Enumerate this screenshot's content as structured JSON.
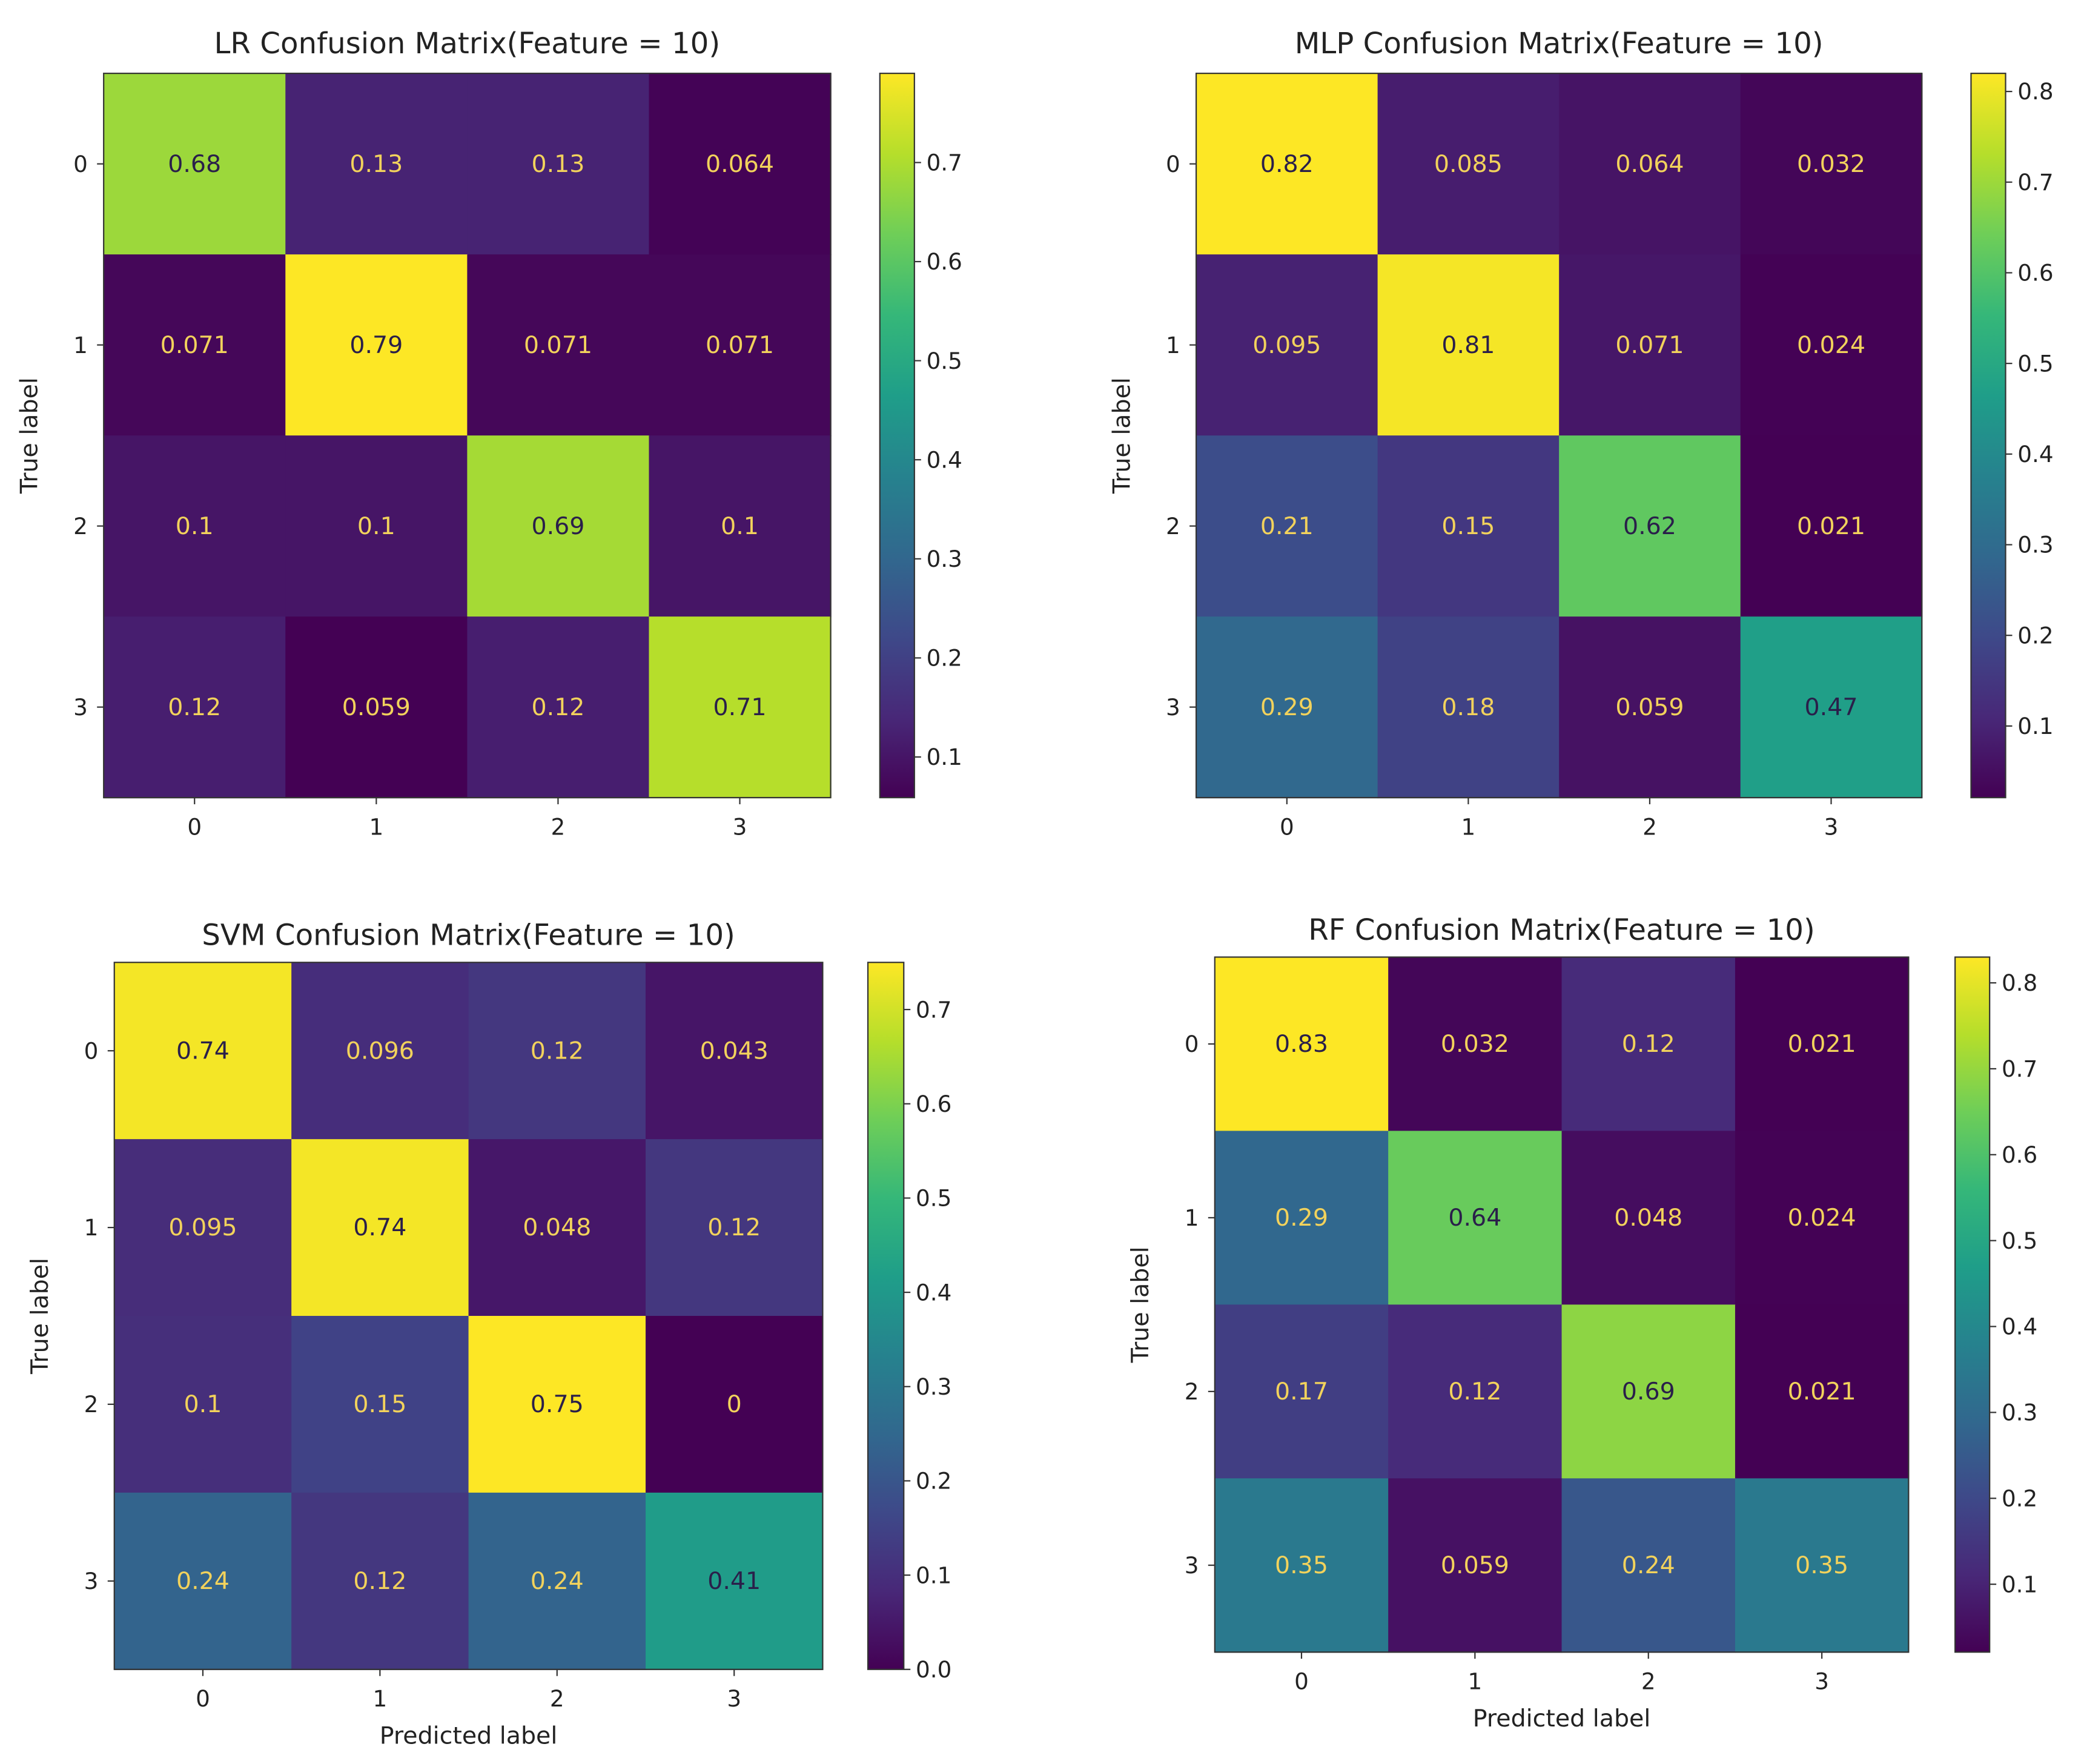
{
  "chart_data": [
    {
      "type": "heatmap",
      "title": "LR Confusion Matrix(Feature = 10)",
      "xlabel": "",
      "ylabel": "True label",
      "x_ticks": [
        "0",
        "1",
        "2",
        "3"
      ],
      "y_ticks": [
        "0",
        "1",
        "2",
        "3"
      ],
      "values": [
        [
          0.68,
          0.13,
          0.13,
          0.064
        ],
        [
          0.071,
          0.79,
          0.071,
          0.071
        ],
        [
          0.1,
          0.1,
          0.69,
          0.1
        ],
        [
          0.12,
          0.059,
          0.12,
          0.71
        ]
      ],
      "colorbar": {
        "vmin": 0.059,
        "vmax": 0.79,
        "ticks": [
          "0.1",
          "0.2",
          "0.3",
          "0.4",
          "0.5",
          "0.6",
          "0.7"
        ]
      },
      "colormap": "viridis"
    },
    {
      "type": "heatmap",
      "title": "MLP Confusion Matrix(Feature = 10)",
      "xlabel": "",
      "ylabel": "True label",
      "x_ticks": [
        "0",
        "1",
        "2",
        "3"
      ],
      "y_ticks": [
        "0",
        "1",
        "2",
        "3"
      ],
      "values": [
        [
          0.82,
          0.085,
          0.064,
          0.032
        ],
        [
          0.095,
          0.81,
          0.071,
          0.024
        ],
        [
          0.21,
          0.15,
          0.62,
          0.021
        ],
        [
          0.29,
          0.18,
          0.059,
          0.47
        ]
      ],
      "colorbar": {
        "vmin": 0.021,
        "vmax": 0.82,
        "ticks": [
          "0.1",
          "0.2",
          "0.3",
          "0.4",
          "0.5",
          "0.6",
          "0.7",
          "0.8"
        ]
      },
      "colormap": "viridis"
    },
    {
      "type": "heatmap",
      "title": "SVM Confusion Matrix(Feature = 10)",
      "xlabel": "Predicted label",
      "ylabel": "True label",
      "x_ticks": [
        "0",
        "1",
        "2",
        "3"
      ],
      "y_ticks": [
        "0",
        "1",
        "2",
        "3"
      ],
      "values": [
        [
          0.74,
          0.096,
          0.12,
          0.043
        ],
        [
          0.095,
          0.74,
          0.048,
          0.12
        ],
        [
          0.1,
          0.15,
          0.75,
          0
        ],
        [
          0.24,
          0.12,
          0.24,
          0.41
        ]
      ],
      "colorbar": {
        "vmin": 0.0,
        "vmax": 0.75,
        "ticks": [
          "0.0",
          "0.1",
          "0.2",
          "0.3",
          "0.4",
          "0.5",
          "0.6",
          "0.7"
        ]
      },
      "colormap": "viridis"
    },
    {
      "type": "heatmap",
      "title": "RF Confusion Matrix(Feature = 10)",
      "xlabel": "Predicted label",
      "ylabel": "True label",
      "x_ticks": [
        "0",
        "1",
        "2",
        "3"
      ],
      "y_ticks": [
        "0",
        "1",
        "2",
        "3"
      ],
      "values": [
        [
          0.83,
          0.032,
          0.12,
          0.021
        ],
        [
          0.29,
          0.64,
          0.048,
          0.024
        ],
        [
          0.17,
          0.12,
          0.69,
          0.021
        ],
        [
          0.35,
          0.059,
          0.24,
          0.35
        ]
      ],
      "colorbar": {
        "vmin": 0.021,
        "vmax": 0.83,
        "ticks": [
          "0.1",
          "0.2",
          "0.3",
          "0.4",
          "0.5",
          "0.6",
          "0.7",
          "0.8"
        ]
      },
      "colormap": "viridis"
    }
  ]
}
